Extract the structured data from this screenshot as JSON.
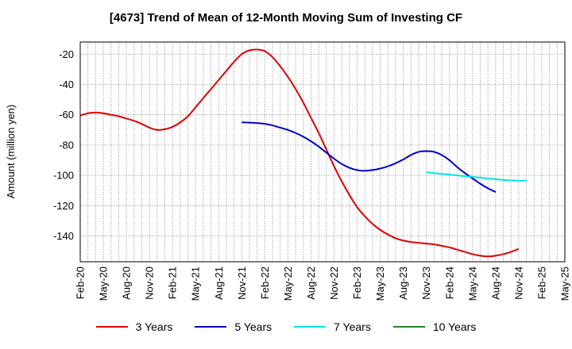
{
  "chart_data": {
    "type": "line",
    "title": "[4673]  Trend of Mean of 12-Month Moving Sum of Investing CF",
    "ylabel": "Amount (million yen)",
    "xlabel": "",
    "ylim": [
      -157,
      -12
    ],
    "yticks": [
      -20,
      -40,
      -60,
      -80,
      -100,
      -120,
      -140
    ],
    "ytick_labels": [
      "-20",
      "-40",
      "-60",
      "-80",
      "-100",
      "-120",
      "-140"
    ],
    "xtick_labels": [
      "Feb-20",
      "May-20",
      "Aug-20",
      "Nov-20",
      "Feb-21",
      "May-21",
      "Aug-21",
      "Nov-21",
      "Feb-22",
      "May-22",
      "Aug-22",
      "Nov-22",
      "Feb-23",
      "May-23",
      "Aug-23",
      "Nov-23",
      "Feb-24",
      "May-24",
      "Aug-24",
      "Nov-24",
      "Feb-25",
      "May-25"
    ],
    "x_start_month": 0,
    "x_end_month": 63,
    "grid": true,
    "legend_position": "bottom",
    "series": [
      {
        "name": "3 Years",
        "color": "#dd0000",
        "start_month": 0,
        "values": [
          -60.5,
          -59,
          -58.5,
          -59,
          -60,
          -61,
          -62.5,
          -64,
          -66,
          -68.5,
          -70,
          -69.5,
          -68,
          -65,
          -61,
          -55,
          -49,
          -43,
          -37,
          -31,
          -25,
          -20,
          -17.5,
          -17,
          -18,
          -22,
          -28,
          -35,
          -43,
          -52,
          -62,
          -72,
          -83,
          -94,
          -104,
          -113,
          -121,
          -127,
          -132,
          -136,
          -139,
          -141.5,
          -143,
          -144,
          -144.5,
          -145,
          -145.5,
          -146.5,
          -147.5,
          -149,
          -150.5,
          -152,
          -153,
          -153.5,
          -153,
          -152,
          -150.5,
          -148.5
        ]
      },
      {
        "name": "5 Years",
        "color": "#0000cc",
        "start_month": 21,
        "values": [
          -65,
          -65.2,
          -65.5,
          -66,
          -67,
          -68.5,
          -70,
          -72,
          -74.5,
          -77.5,
          -81,
          -85,
          -89,
          -92.5,
          -95,
          -96.5,
          -97,
          -96.5,
          -95.5,
          -94,
          -92,
          -89.5,
          -86.5,
          -84.5,
          -84,
          -84.5,
          -86.5,
          -90,
          -94.5,
          -98.5,
          -102,
          -105.5,
          -108.5,
          -111
        ]
      },
      {
        "name": "7 Years",
        "color": "#00e5e5",
        "start_month": 45,
        "values": [
          -98,
          -98.5,
          -99,
          -99.5,
          -100,
          -100.5,
          -101,
          -101.5,
          -102,
          -102.5,
          -103,
          -103.3,
          -103.5,
          -103.5
        ]
      },
      {
        "name": "10 Years",
        "color": "#228822",
        "start_month": 0,
        "values": []
      }
    ]
  }
}
